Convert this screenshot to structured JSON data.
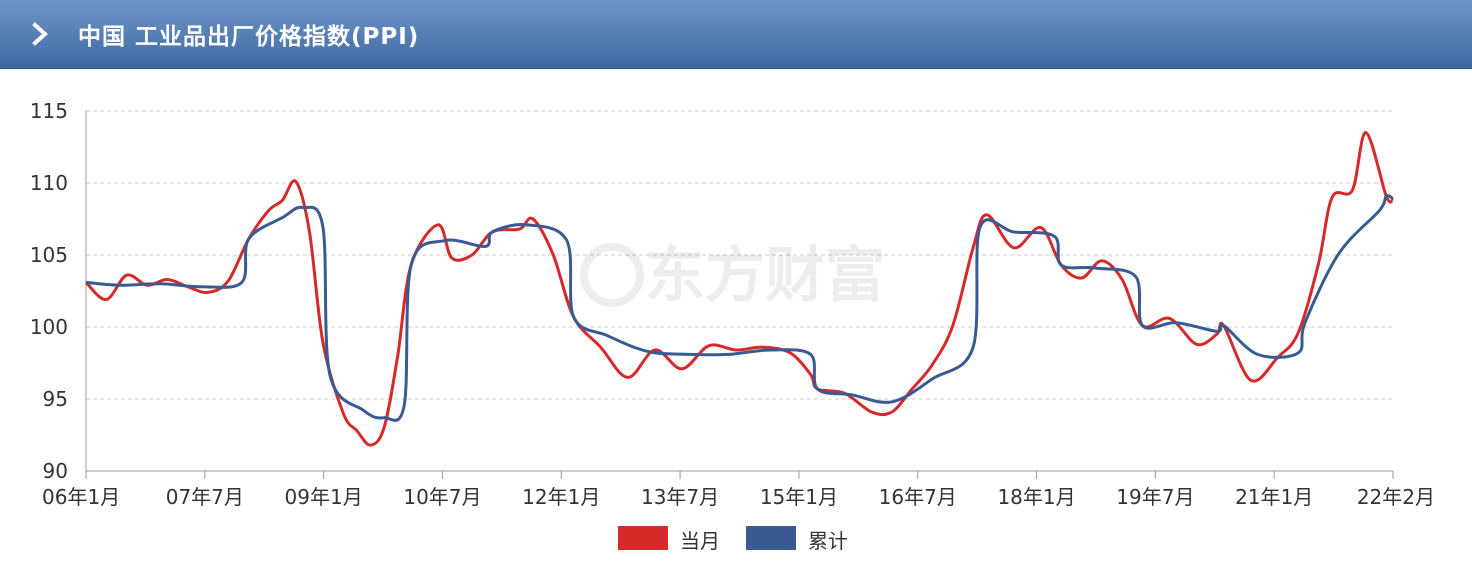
{
  "header": {
    "title": "中国 工业品出厂价格指数(PPI)",
    "icon": "chevron-right-icon"
  },
  "watermark": "东方财富",
  "colors": {
    "header": "#4f7bb5",
    "monthly": "#d62a2a",
    "cumulative": "#3a5a92",
    "grid": "#cccccc"
  },
  "legend": [
    {
      "label": "当月",
      "color": "#d62a2a"
    },
    {
      "label": "累计",
      "color": "#3a5a92"
    }
  ],
  "chart_data": {
    "type": "line",
    "title": "中国 工业品出厂价格指数(PPI)",
    "xlabel": "",
    "ylabel": "",
    "ylim": [
      90,
      115
    ],
    "yticks": [
      90,
      95,
      100,
      105,
      110,
      115
    ],
    "xlim": [
      "2006-01",
      "2022-02"
    ],
    "xtick_labels": [
      "06年1月",
      "07年7月",
      "09年1月",
      "10年7月",
      "12年1月",
      "13年7月",
      "15年1月",
      "16年7月",
      "18年1月",
      "19年7月",
      "21年1月",
      "22年2月"
    ],
    "grid": true,
    "legend_position": "bottom",
    "series": [
      {
        "name": "当月",
        "points": [
          [
            "2006-01",
            103.1
          ],
          [
            "2006-04",
            101.9
          ],
          [
            "2006-07",
            103.6
          ],
          [
            "2006-10",
            102.9
          ],
          [
            "2007-01",
            103.3
          ],
          [
            "2007-04",
            102.8
          ],
          [
            "2007-07",
            102.4
          ],
          [
            "2007-10",
            103.2
          ],
          [
            "2008-01",
            106.1
          ],
          [
            "2008-04",
            108.1
          ],
          [
            "2008-06",
            108.8
          ],
          [
            "2008-08",
            110.1
          ],
          [
            "2008-10",
            106.6
          ],
          [
            "2008-12",
            98.9
          ],
          [
            "2009-03",
            94.0
          ],
          [
            "2009-05",
            92.8
          ],
          [
            "2009-07",
            91.8
          ],
          [
            "2009-09",
            93.0
          ],
          [
            "2009-11",
            97.9
          ],
          [
            "2010-01",
            104.3
          ],
          [
            "2010-05",
            107.1
          ],
          [
            "2010-07",
            104.8
          ],
          [
            "2010-10",
            105.0
          ],
          [
            "2011-01",
            106.6
          ],
          [
            "2011-05",
            106.8
          ],
          [
            "2011-07",
            107.5
          ],
          [
            "2011-10",
            105.0
          ],
          [
            "2012-01",
            100.7
          ],
          [
            "2012-05",
            98.6
          ],
          [
            "2012-09",
            96.5
          ],
          [
            "2013-01",
            98.4
          ],
          [
            "2013-05",
            97.1
          ],
          [
            "2013-09",
            98.7
          ],
          [
            "2014-01",
            98.4
          ],
          [
            "2014-05",
            98.6
          ],
          [
            "2014-09",
            98.2
          ],
          [
            "2014-12",
            96.7
          ],
          [
            "2015-01",
            95.7
          ],
          [
            "2015-05",
            95.4
          ],
          [
            "2015-09",
            94.1
          ],
          [
            "2015-12",
            94.1
          ],
          [
            "2016-03",
            95.7
          ],
          [
            "2016-06",
            97.4
          ],
          [
            "2016-09",
            100.1
          ],
          [
            "2016-12",
            105.5
          ],
          [
            "2017-02",
            107.8
          ],
          [
            "2017-06",
            105.5
          ],
          [
            "2017-10",
            106.9
          ],
          [
            "2018-01",
            104.3
          ],
          [
            "2018-04",
            103.4
          ],
          [
            "2018-07",
            104.6
          ],
          [
            "2018-10",
            103.3
          ],
          [
            "2019-01",
            100.1
          ],
          [
            "2019-05",
            100.6
          ],
          [
            "2019-09",
            98.8
          ],
          [
            "2019-12",
            99.5
          ],
          [
            "2020-01",
            100.1
          ],
          [
            "2020-05",
            96.3
          ],
          [
            "2020-09",
            97.9
          ],
          [
            "2020-12",
            99.6
          ],
          [
            "2021-03",
            104.4
          ],
          [
            "2021-05",
            109.0
          ],
          [
            "2021-08",
            109.5
          ],
          [
            "2021-10",
            113.5
          ],
          [
            "2022-01",
            109.1
          ],
          [
            "2022-02",
            108.8
          ]
        ]
      },
      {
        "name": "累计",
        "points": [
          [
            "2006-01",
            103.1
          ],
          [
            "2006-06",
            102.9
          ],
          [
            "2006-12",
            103.0
          ],
          [
            "2007-06",
            102.8
          ],
          [
            "2007-12",
            103.1
          ],
          [
            "2008-01",
            106.1
          ],
          [
            "2008-06",
            107.6
          ],
          [
            "2008-09",
            108.3
          ],
          [
            "2008-12",
            106.9
          ],
          [
            "2009-01",
            96.7
          ],
          [
            "2009-06",
            94.2
          ],
          [
            "2009-09",
            93.7
          ],
          [
            "2009-12",
            94.6
          ],
          [
            "2010-01",
            104.3
          ],
          [
            "2010-06",
            106.0
          ],
          [
            "2010-12",
            105.6
          ],
          [
            "2011-01",
            106.6
          ],
          [
            "2011-06",
            107.1
          ],
          [
            "2011-12",
            106.0
          ],
          [
            "2012-01",
            100.7
          ],
          [
            "2012-06",
            99.4
          ],
          [
            "2012-12",
            98.3
          ],
          [
            "2013-06",
            98.1
          ],
          [
            "2013-12",
            98.1
          ],
          [
            "2014-06",
            98.4
          ],
          [
            "2014-12",
            98.1
          ],
          [
            "2015-01",
            95.7
          ],
          [
            "2015-06",
            95.3
          ],
          [
            "2015-12",
            94.8
          ],
          [
            "2016-06",
            96.4
          ],
          [
            "2016-12",
            98.6
          ],
          [
            "2017-01",
            106.9
          ],
          [
            "2017-06",
            106.6
          ],
          [
            "2017-12",
            106.3
          ],
          [
            "2018-01",
            104.3
          ],
          [
            "2018-06",
            104.1
          ],
          [
            "2018-12",
            103.5
          ],
          [
            "2019-01",
            100.1
          ],
          [
            "2019-06",
            100.3
          ],
          [
            "2019-12",
            99.7
          ],
          [
            "2020-01",
            100.1
          ],
          [
            "2020-06",
            98.1
          ],
          [
            "2020-12",
            98.2
          ],
          [
            "2021-01",
            100.3
          ],
          [
            "2021-06",
            105.1
          ],
          [
            "2021-12",
            108.1
          ],
          [
            "2022-01",
            109.1
          ],
          [
            "2022-02",
            108.9
          ]
        ]
      }
    ]
  }
}
